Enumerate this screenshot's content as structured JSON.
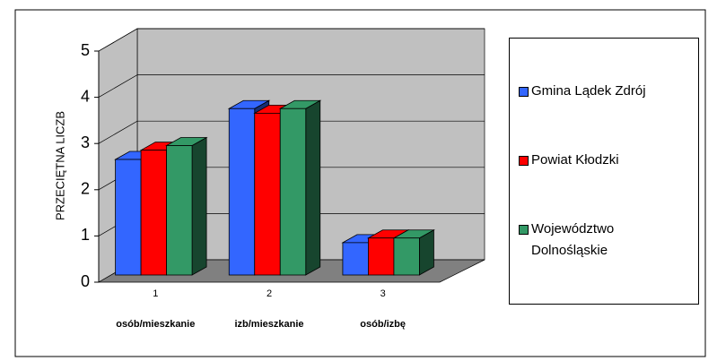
{
  "chart_data": {
    "type": "bar3d",
    "y_axis_label": "PRZECIĘTNA LICZB",
    "categories": [
      "1",
      "2",
      "3"
    ],
    "category_labels": [
      "osób/mieszkanie",
      "izb/mieszkanie",
      "osób/izbę"
    ],
    "series": [
      {
        "name": "Gmina Lądek Zdrój",
        "color": "#3366ff",
        "values": [
          2.5,
          3.6,
          0.7
        ]
      },
      {
        "name": "Powiat Kłodzki",
        "color": "#ff0000",
        "values": [
          2.7,
          3.5,
          0.8
        ]
      },
      {
        "name": "Województwo Dolnośląskie",
        "color": "#339966",
        "values": [
          2.8,
          3.6,
          0.8
        ]
      }
    ],
    "ylim": [
      0,
      5
    ],
    "yticks": [
      0,
      1,
      2,
      3,
      4,
      5
    ],
    "grid": true,
    "legend": "right"
  }
}
